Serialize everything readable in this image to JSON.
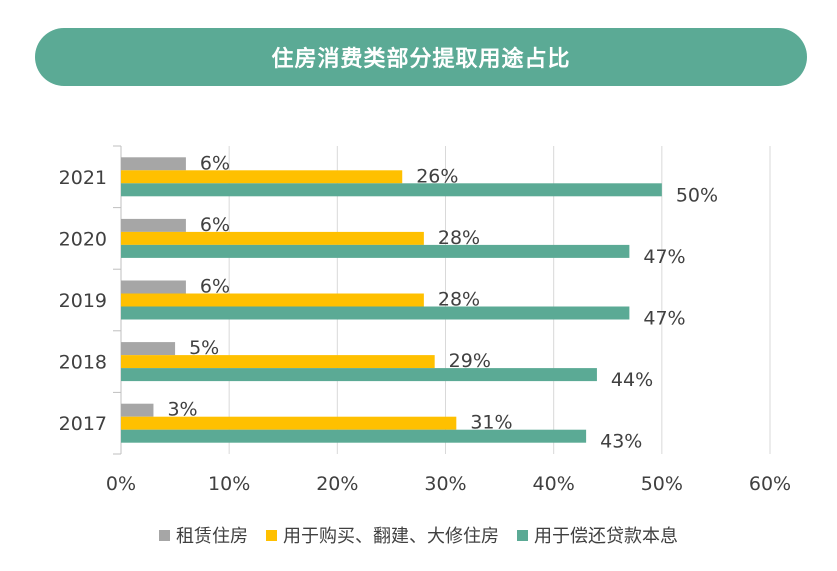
{
  "chart_data": {
    "type": "bar",
    "orientation": "horizontal",
    "title": "住房消费类部分提取用途占比",
    "categories": [
      "2021",
      "2020",
      "2019",
      "2018",
      "2017"
    ],
    "series": [
      {
        "name": "租赁住房",
        "color": "#A6A6A6",
        "values": [
          6,
          6,
          6,
          5,
          3
        ],
        "labels": [
          "6%",
          "6%",
          "6%",
          "5%",
          "3%"
        ]
      },
      {
        "name": "用于购买、翻建、大修住房",
        "color": "#FFC000",
        "values": [
          26,
          28,
          28,
          29,
          31
        ],
        "labels": [
          "26%",
          "28%",
          "28%",
          "29%",
          "31%"
        ]
      },
      {
        "name": "用于偿还贷款本息",
        "color": "#5BAA95",
        "values": [
          50,
          47,
          47,
          44,
          43
        ],
        "labels": [
          "50%",
          "47%",
          "47%",
          "44%",
          "43%"
        ]
      }
    ],
    "xlim": [
      0,
      60
    ],
    "xticks": [
      "0%",
      "10%",
      "20%",
      "30%",
      "40%",
      "50%",
      "60%"
    ],
    "grid": true,
    "legend": "bottom"
  }
}
